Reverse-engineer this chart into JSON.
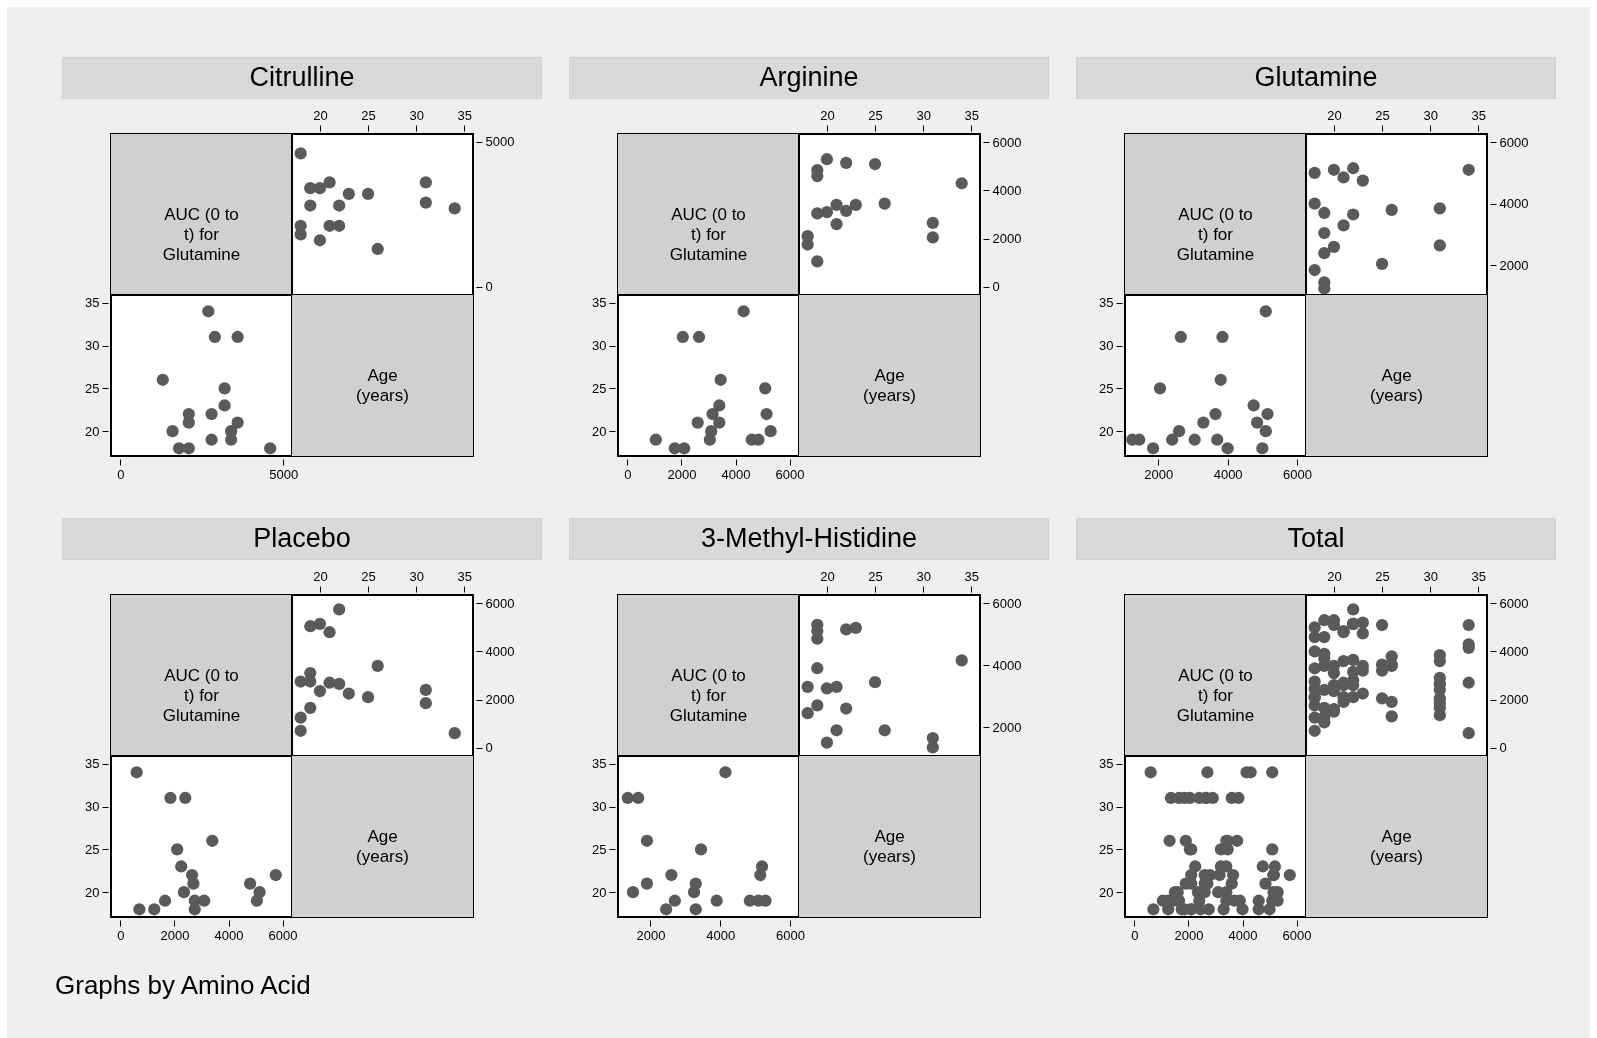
{
  "chart_data": [
    {
      "type": "other",
      "title": "Citrulline"
    },
    {
      "type": "other",
      "annotations": [
        "AUC (0 to t) for Glutamine"
      ]
    },
    {
      "type": "scatter",
      "x": [
        34,
        31,
        31,
        26,
        25,
        22,
        22,
        23,
        21,
        21,
        20,
        20,
        19,
        19,
        18,
        18,
        18
      ],
      "values": [
        2700,
        2900,
        3600,
        1300,
        3200,
        2100,
        2800,
        3200,
        2100,
        3600,
        3400,
        1600,
        2800,
        3400,
        1800,
        2100,
        4600
      ],
      "xlim": [
        17.1,
        35.9
      ],
      "xticks": [
        20,
        25,
        30,
        35
      ],
      "ylim": [
        -290,
        5270
      ],
      "yticks": [
        0,
        5000
      ],
      "color": "#5a5a5a",
      "marker": "circle"
    },
    {
      "type": "scatter",
      "x": [
        2700,
        2900,
        3600,
        1300,
        3200,
        2100,
        2800,
        3200,
        2100,
        3600,
        3400,
        1600,
        2800,
        3400,
        1800,
        2100,
        4600
      ],
      "values": [
        34,
        31,
        31,
        26,
        25,
        22,
        22,
        23,
        21,
        21,
        20,
        20,
        19,
        19,
        18,
        18,
        18
      ],
      "xlim": [
        -290,
        5270
      ],
      "xticks": [
        0,
        5000
      ],
      "ylim": [
        17.1,
        35.9
      ],
      "yticks": [
        20,
        25,
        30,
        35
      ],
      "color": "#5a5a5a",
      "marker": "circle"
    },
    {
      "type": "other",
      "annotations": [
        "Age (years)"
      ]
    },
    {
      "type": "other",
      "title": "Arginine"
    },
    {
      "type": "other",
      "annotations": [
        "AUC (0 to t) for Glutamine"
      ]
    },
    {
      "type": "scatter",
      "x": [
        34,
        31,
        31,
        26,
        25,
        23,
        22,
        22,
        21,
        21,
        20,
        20,
        19,
        19,
        19,
        19,
        18,
        18
      ],
      "values": [
        4300,
        2050,
        2650,
        3450,
        5100,
        3400,
        5150,
        3150,
        2600,
        3400,
        3100,
        5300,
        1050,
        3050,
        4600,
        4850,
        1750,
        2100
      ],
      "xlim": [
        17.1,
        35.9
      ],
      "xticks": [
        20,
        25,
        30,
        35
      ],
      "ylim": [
        -350,
        6350
      ],
      "yticks": [
        0,
        2000,
        4000,
        6000
      ],
      "color": "#5a5a5a",
      "marker": "circle"
    },
    {
      "type": "scatter",
      "x": [
        4300,
        2050,
        2650,
        3450,
        5100,
        3400,
        5150,
        3150,
        2600,
        3400,
        3100,
        5300,
        1050,
        3050,
        4600,
        4850,
        1750,
        2100
      ],
      "values": [
        34,
        31,
        31,
        26,
        25,
        23,
        22,
        22,
        21,
        21,
        20,
        20,
        19,
        19,
        19,
        19,
        18,
        18
      ],
      "xlim": [
        -350,
        6350
      ],
      "xticks": [
        0,
        2000,
        4000,
        6000
      ],
      "ylim": [
        17.1,
        35.9
      ],
      "yticks": [
        20,
        25,
        30,
        35
      ],
      "color": "#5a5a5a",
      "marker": "circle"
    },
    {
      "type": "other",
      "annotations": [
        "Age (years)"
      ]
    },
    {
      "type": "other",
      "title": "Glutamine"
    },
    {
      "type": "other",
      "annotations": [
        "AUC (0 to t) for Glutamine"
      ]
    },
    {
      "type": "scatter",
      "x": [
        34,
        31,
        31,
        26,
        25,
        23,
        22,
        22,
        21,
        21,
        20,
        20,
        19,
        19,
        19,
        19,
        19,
        18,
        18,
        18
      ],
      "values": [
        5100,
        2650,
        3850,
        3800,
        2050,
        4750,
        3650,
        5150,
        3300,
        4850,
        2600,
        5100,
        1250,
        1450,
        2400,
        3050,
        3700,
        1850,
        4000,
        5000
      ],
      "xlim": [
        17.1,
        35.9
      ],
      "xticks": [
        20,
        25,
        30,
        35
      ],
      "ylim": [
        1040,
        6260
      ],
      "yticks": [
        2000,
        4000,
        6000
      ],
      "color": "#5a5a5a",
      "marker": "circle"
    },
    {
      "type": "scatter",
      "x": [
        5100,
        2650,
        3850,
        3800,
        2050,
        4750,
        3650,
        5150,
        3300,
        4850,
        2600,
        5100,
        1250,
        1450,
        2400,
        3050,
        3700,
        1850,
        4000,
        5000
      ],
      "values": [
        34,
        31,
        31,
        26,
        25,
        23,
        22,
        22,
        21,
        21,
        20,
        20,
        19,
        19,
        19,
        19,
        19,
        18,
        18,
        18
      ],
      "xlim": [
        1040,
        6260
      ],
      "xticks": [
        2000,
        4000,
        6000
      ],
      "ylim": [
        17.1,
        35.9
      ],
      "yticks": [
        20,
        25,
        30,
        35
      ],
      "color": "#5a5a5a",
      "marker": "circle"
    },
    {
      "type": "other",
      "annotations": [
        "Age (years)"
      ]
    },
    {
      "type": "other",
      "title": "Placebo"
    },
    {
      "type": "other",
      "annotations": [
        "AUC (0 to t) for Glutamine"
      ]
    },
    {
      "type": "scatter",
      "x": [
        34,
        31,
        31,
        26,
        25,
        23,
        22,
        22,
        21,
        21,
        20,
        20,
        19,
        19,
        19,
        19,
        18,
        18,
        18
      ],
      "values": [
        600,
        1850,
        2400,
        3400,
        2100,
        2250,
        2650,
        5750,
        2700,
        4800,
        2350,
        5150,
        1650,
        2750,
        3100,
        5050,
        700,
        1250,
        2750
      ],
      "xlim": [
        17.1,
        35.9
      ],
      "xticks": [
        20,
        25,
        30,
        35
      ],
      "ylim": [
        -350,
        6350
      ],
      "yticks": [
        0,
        2000,
        4000,
        6000
      ],
      "color": "#5a5a5a",
      "marker": "circle"
    },
    {
      "type": "scatter",
      "x": [
        600,
        1850,
        2400,
        3400,
        2100,
        2250,
        2650,
        5750,
        2700,
        4800,
        2350,
        5150,
        1650,
        2750,
        3100,
        5050,
        700,
        1250,
        2750
      ],
      "values": [
        34,
        31,
        31,
        26,
        25,
        23,
        22,
        22,
        21,
        21,
        20,
        20,
        19,
        19,
        19,
        19,
        18,
        18,
        18
      ],
      "xlim": [
        -350,
        6350
      ],
      "xticks": [
        0,
        2000,
        4000,
        6000
      ],
      "ylim": [
        17.1,
        35.9
      ],
      "yticks": [
        20,
        25,
        30,
        35
      ],
      "color": "#5a5a5a",
      "marker": "circle"
    },
    {
      "type": "other",
      "annotations": [
        "Age (years)"
      ]
    },
    {
      "type": "other",
      "title": "3-Methyl-Histidine"
    },
    {
      "type": "other",
      "annotations": [
        "AUC (0 to t) for Glutamine"
      ]
    },
    {
      "type": "scatter",
      "x": [
        34,
        31,
        31,
        26,
        25,
        23,
        22,
        22,
        21,
        21,
        20,
        20,
        19,
        19,
        19,
        19,
        19,
        18,
        18
      ],
      "values": [
        4150,
        1350,
        1650,
        1900,
        3450,
        5200,
        5150,
        2600,
        3300,
        1900,
        3250,
        1500,
        2700,
        3900,
        4850,
        5100,
        5300,
        2450,
        3300
      ],
      "xlim": [
        17.1,
        35.9
      ],
      "xticks": [
        20,
        25,
        30,
        35
      ],
      "ylim": [
        1070,
        6260
      ],
      "yticks": [
        2000,
        4000,
        6000
      ],
      "color": "#5a5a5a",
      "marker": "circle"
    },
    {
      "type": "scatter",
      "x": [
        4150,
        1350,
        1650,
        1900,
        3450,
        5200,
        5150,
        2600,
        3300,
        1900,
        3250,
        1500,
        2700,
        3900,
        4850,
        5100,
        5300,
        2450,
        3300
      ],
      "values": [
        34,
        31,
        31,
        26,
        25,
        23,
        22,
        22,
        21,
        21,
        20,
        20,
        19,
        19,
        19,
        19,
        19,
        18,
        18
      ],
      "xlim": [
        1070,
        6260
      ],
      "xticks": [
        2000,
        4000,
        6000
      ],
      "ylim": [
        17.1,
        35.9
      ],
      "yticks": [
        20,
        25,
        30,
        35
      ],
      "color": "#5a5a5a",
      "marker": "circle"
    },
    {
      "type": "other",
      "annotations": [
        "Age (years)"
      ]
    },
    {
      "type": "other",
      "title": "Total"
    },
    {
      "type": "other",
      "annotations": [
        "AUC (0 to t) for Glutamine"
      ]
    },
    {
      "type": "scatter",
      "x": [
        34,
        31,
        31,
        26,
        25,
        22,
        22,
        23,
        21,
        21,
        20,
        20,
        19,
        18,
        18,
        34,
        31,
        31,
        26,
        25,
        23,
        22,
        22,
        21,
        20,
        20,
        19,
        19,
        18,
        18,
        34,
        31,
        31,
        26,
        25,
        23,
        22,
        22,
        21,
        20,
        20,
        19,
        19,
        19,
        18,
        18,
        34,
        31,
        31,
        26,
        23,
        22,
        21,
        21,
        20,
        19,
        18,
        18,
        18,
        34,
        31,
        31,
        26,
        25,
        23,
        22,
        22,
        21,
        20,
        19,
        19,
        18,
        18
      ],
      "values": [
        2700,
        2900,
        3600,
        1300,
        3200,
        2100,
        2800,
        3200,
        2100,
        3600,
        3400,
        1600,
        3400,
        2100,
        4600,
        4300,
        2050,
        2650,
        3450,
        5100,
        3400,
        5150,
        3150,
        2600,
        3100,
        5300,
        1050,
        4600,
        1750,
        2100,
        5100,
        2650,
        3850,
        3800,
        2050,
        4750,
        3650,
        5150,
        4850,
        2600,
        5100,
        1250,
        2400,
        3700,
        4000,
        5000,
        600,
        1850,
        2400,
        3400,
        2250,
        5750,
        2700,
        4800,
        2350,
        1650,
        700,
        1250,
        2750,
        4150,
        1350,
        1650,
        1900,
        3450,
        5200,
        5150,
        2600,
        1900,
        1500,
        3900,
        5300,
        2450,
        3300
      ],
      "xlim": [
        17.1,
        35.9
      ],
      "xticks": [
        20,
        25,
        30,
        35
      ],
      "ylim": [
        -350,
        6350
      ],
      "yticks": [
        0,
        2000,
        4000,
        6000
      ],
      "color": "#5a5a5a",
      "marker": "circle"
    },
    {
      "type": "scatter",
      "x": [
        2700,
        2900,
        3600,
        1300,
        3200,
        2100,
        2800,
        3200,
        2100,
        3600,
        3400,
        1600,
        3400,
        2100,
        4600,
        4300,
        2050,
        2650,
        3450,
        5100,
        3400,
        5150,
        3150,
        2600,
        3100,
        5300,
        1050,
        4600,
        1750,
        2100,
        5100,
        2650,
        3850,
        3800,
        2050,
        4750,
        3650,
        5150,
        4850,
        2600,
        1250,
        1450,
        2400,
        3700,
        1850,
        4000,
        5000,
        600,
        1850,
        2400,
        3400,
        2100,
        2250,
        5750,
        2700,
        2350,
        5150,
        1650,
        700,
        1250,
        2750,
        4150,
        1350,
        1650,
        1900,
        3450,
        5200,
        5150,
        2600,
        1900,
        1500,
        3900,
        5100,
        5300,
        2450,
        3300
      ],
      "values": [
        34,
        31,
        31,
        26,
        25,
        22,
        22,
        23,
        21,
        21,
        20,
        20,
        19,
        18,
        18,
        34,
        31,
        31,
        26,
        25,
        23,
        22,
        22,
        21,
        20,
        20,
        19,
        19,
        18,
        18,
        34,
        31,
        31,
        26,
        25,
        23,
        22,
        22,
        21,
        20,
        19,
        19,
        19,
        19,
        18,
        18,
        18,
        34,
        31,
        31,
        26,
        25,
        23,
        22,
        21,
        20,
        20,
        19,
        18,
        18,
        18,
        34,
        31,
        31,
        26,
        25,
        23,
        22,
        22,
        21,
        20,
        19,
        19,
        19,
        18,
        18
      ],
      "xlim": [
        -350,
        6350
      ],
      "xticks": [
        0,
        2000,
        4000,
        6000
      ],
      "ylim": [
        17.1,
        35.9
      ],
      "yticks": [
        20,
        25,
        30,
        35
      ],
      "color": "#5a5a5a",
      "marker": "circle"
    },
    {
      "type": "other",
      "annotations": [
        "Age (years)"
      ]
    },
    {
      "type": "other",
      "annotations": [
        "Graphs by Amino Acid"
      ]
    }
  ]
}
